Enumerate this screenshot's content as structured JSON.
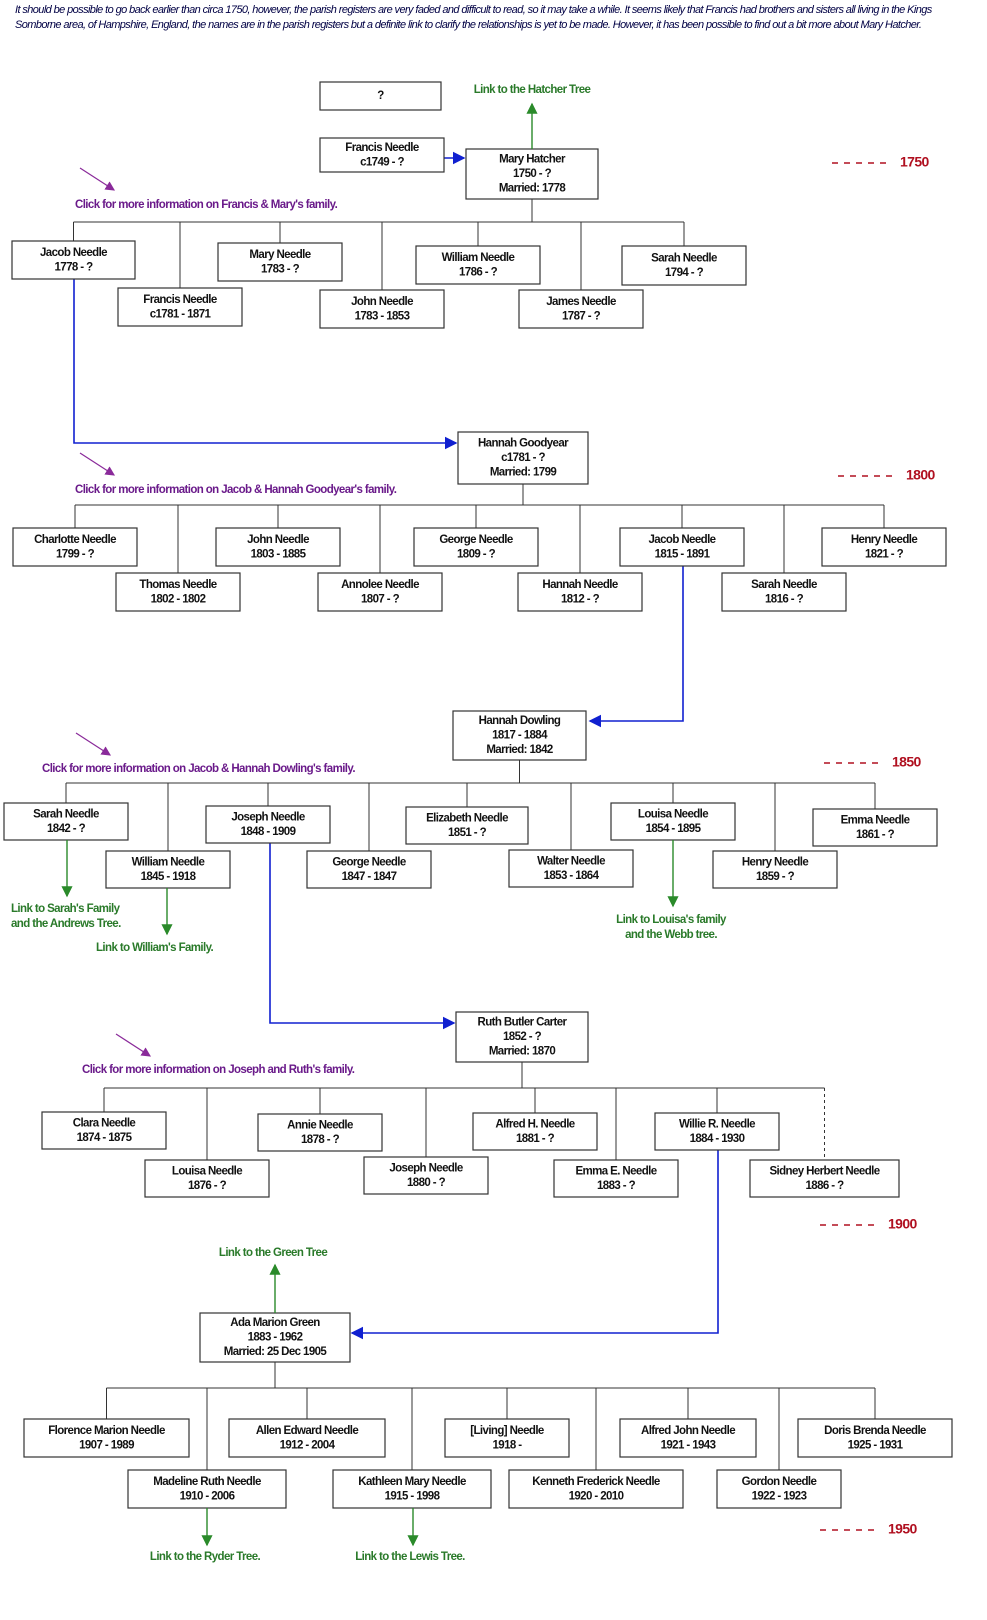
{
  "intro": "It should be possible to go back earlier than circa 1750, however, the parish registers are very faded and difficult to read, so it may take a while. It seems likely that Francis had brothers and sisters all living in the Kings Somborne area, of Hampshire, England, the names are in the parish registers but a definite link to clarify the relationships is yet to be made. However, it has been possible to find out a bit more about Mary Hatcher.",
  "nodes": [
    {
      "lines": [
        "?"
      ]
    },
    {
      "lines": [
        "Francis Needle",
        "c1749 - ?"
      ]
    },
    {
      "lines": [
        "Mary Hatcher",
        "1750 - ?",
        "Married: 1778"
      ]
    },
    {
      "lines": [
        "Jacob Needle",
        "1778 - ?"
      ]
    },
    {
      "lines": [
        "Francis Needle",
        "c1781 - 1871"
      ]
    },
    {
      "lines": [
        "Mary Needle",
        "1783 - ?"
      ]
    },
    {
      "lines": [
        "John Needle",
        "1783 - 1853"
      ]
    },
    {
      "lines": [
        "William Needle",
        "1786 - ?"
      ]
    },
    {
      "lines": [
        "James Needle",
        "1787 - ?"
      ]
    },
    {
      "lines": [
        "Sarah Needle",
        "1794 - ?"
      ]
    },
    {
      "lines": [
        "Hannah Goodyear",
        "c1781 - ?",
        "Married: 1799"
      ]
    },
    {
      "lines": [
        "Charlotte Needle",
        "1799 - ?"
      ]
    },
    {
      "lines": [
        "Thomas Needle",
        "1802 - 1802"
      ]
    },
    {
      "lines": [
        "John Needle",
        "1803 - 1885"
      ]
    },
    {
      "lines": [
        "Annolee Needle",
        "1807 - ?"
      ]
    },
    {
      "lines": [
        "George Needle",
        "1809 - ?"
      ]
    },
    {
      "lines": [
        "Hannah Needle",
        "1812 - ?"
      ]
    },
    {
      "lines": [
        "Jacob Needle",
        "1815 - 1891"
      ]
    },
    {
      "lines": [
        "Sarah Needle",
        "1816 - ?"
      ]
    },
    {
      "lines": [
        "Henry Needle",
        "1821 - ?"
      ]
    },
    {
      "lines": [
        "Hannah Dowling",
        "1817 - 1884",
        "Married: 1842"
      ]
    },
    {
      "lines": [
        "Sarah Needle",
        "1842 - ?"
      ]
    },
    {
      "lines": [
        "William Needle",
        "1845 - 1918"
      ]
    },
    {
      "lines": [
        "Joseph Needle",
        "1848 - 1909"
      ]
    },
    {
      "lines": [
        "George Needle",
        "1847 - 1847"
      ]
    },
    {
      "lines": [
        "Elizabeth Needle",
        "1851 - ?"
      ]
    },
    {
      "lines": [
        "Walter Needle",
        "1853 - 1864"
      ]
    },
    {
      "lines": [
        "Louisa Needle",
        "1854 - 1895"
      ]
    },
    {
      "lines": [
        "Henry Needle",
        "1859 - ?"
      ]
    },
    {
      "lines": [
        "Emma Needle",
        "1861 - ?"
      ]
    },
    {
      "lines": [
        "Ruth Butler Carter",
        "1852 - ?",
        "Married: 1870"
      ]
    },
    {
      "lines": [
        "Clara Needle",
        "1874 - 1875"
      ]
    },
    {
      "lines": [
        "Louisa Needle",
        "1876 - ?"
      ]
    },
    {
      "lines": [
        "Annie Needle",
        "1878 - ?"
      ]
    },
    {
      "lines": [
        "Joseph Needle",
        "1880 - ?"
      ]
    },
    {
      "lines": [
        "Alfred H. Needle",
        "1881 - ?"
      ]
    },
    {
      "lines": [
        "Emma E. Needle",
        "1883 - ?"
      ]
    },
    {
      "lines": [
        "Willie R. Needle",
        "1884 - 1930"
      ]
    },
    {
      "lines": [
        "Sidney Herbert Needle",
        "1886 - ?"
      ]
    },
    {
      "lines": [
        "Ada Marion Green",
        "1883 - 1962",
        "Married: 25 Dec 1905"
      ]
    },
    {
      "lines": [
        "Florence Marion Needle",
        "1907 - 1989"
      ]
    },
    {
      "lines": [
        "Madeline Ruth Needle",
        "1910 - 2006"
      ]
    },
    {
      "lines": [
        "Allen Edward Needle",
        "1912 - 2004"
      ]
    },
    {
      "lines": [
        "Kathleen Mary Needle",
        "1915 - 1998"
      ]
    },
    {
      "lines": [
        "[Living] Needle",
        "1918 -"
      ]
    },
    {
      "lines": [
        "Kenneth Frederick Needle",
        "1920 - 2010"
      ]
    },
    {
      "lines": [
        "Alfred John Needle",
        "1921 - 1943"
      ]
    },
    {
      "lines": [
        "Gordon Needle",
        "1922 - 1923"
      ]
    },
    {
      "lines": [
        "Doris Brenda Needle",
        "1925 - 1931"
      ]
    }
  ],
  "info_links": [
    "Click for more information on Francis & Mary's family.",
    "Click for more information on Jacob & Hannah Goodyear's family.",
    "Click for more information on Jacob & Hannah Dowling's family.",
    "Click for more information on Joseph and Ruth's family."
  ],
  "tree_links": [
    {
      "lines": [
        "Link to the Hatcher Tree"
      ]
    },
    {
      "lines": [
        "Link to Sarah's Family",
        "and the Andrews Tree."
      ]
    },
    {
      "lines": [
        "Link to William's Family."
      ]
    },
    {
      "lines": [
        "Link to Louisa's family",
        "and the Webb tree."
      ]
    },
    {
      "lines": [
        "Link to the Green Tree"
      ]
    },
    {
      "lines": [
        "Link to the Ryder Tree."
      ]
    },
    {
      "lines": [
        "Link to the Lewis Tree."
      ]
    }
  ],
  "decades": [
    "1750",
    "1800",
    "1850",
    "1900",
    "1950"
  ]
}
